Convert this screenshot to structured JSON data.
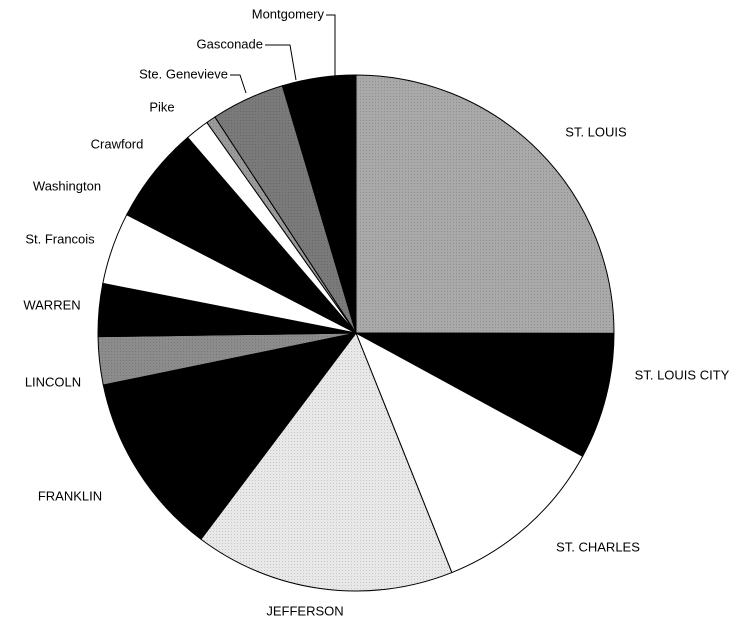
{
  "chart_data": {
    "type": "pie",
    "categories": [
      "ST. LOUIS",
      "ST. LOUIS CITY",
      "ST. CHARLES",
      "JEFFERSON",
      "FRANKLIN",
      "LINCOLN",
      "WARREN",
      "St. Francois",
      "Washington",
      "Crawford",
      "Pike",
      "Ste. Genevieve",
      "Gasconade",
      "Montgomery"
    ],
    "values": [
      25,
      7.9,
      11,
      16.3,
      11.5,
      3,
      3.3,
      4.5,
      5.1,
      1,
      1.5,
      0.6,
      4.6,
      4.6
    ],
    "colors": [
      "#a9a9a9",
      "#000000",
      "#ffffff",
      "#e8e8e8",
      "#000000",
      "#8c8c8c",
      "#000000",
      "#ffffff",
      "#000000",
      "#000000",
      "#ffffff",
      "#9a9a9a",
      "#7a7a7a",
      "#000000"
    ]
  }
}
